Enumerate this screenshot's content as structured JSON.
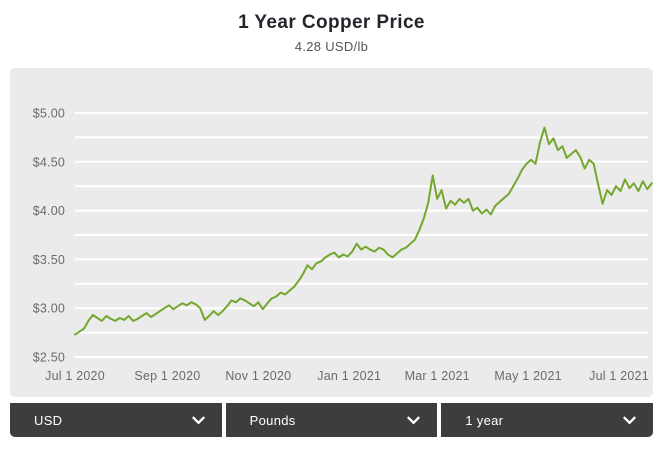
{
  "header": {
    "title": "1 Year Copper Price",
    "subtitle": "4.28 USD/lb"
  },
  "chart_data": {
    "type": "line",
    "title": "1 Year Copper Price",
    "subtitle_latest_price": "4.28 USD/lb",
    "unit": "USD/lb",
    "line_color": "#74a72e",
    "plot_bg": "#ebebeb",
    "grid_color": "#ffffff",
    "grid_on": true,
    "legend": "none",
    "ylim": [
      2.5,
      5.0
    ],
    "y_grid_step": 0.25,
    "y_ticks": [
      {
        "label": "$2.50",
        "value": 2.5
      },
      {
        "label": "$3.00",
        "value": 3.0
      },
      {
        "label": "$3.50",
        "value": 3.5
      },
      {
        "label": "$4.00",
        "value": 4.0
      },
      {
        "label": "$4.50",
        "value": 4.5
      },
      {
        "label": "$5.00",
        "value": 5.0
      }
    ],
    "x_ticks": [
      {
        "label": "Jul 1 2020",
        "day": 0
      },
      {
        "label": "Sep 1 2020",
        "day": 62
      },
      {
        "label": "Nov 1 2020",
        "day": 123
      },
      {
        "label": "Jan 1 2021",
        "day": 184
      },
      {
        "label": "Mar 1 2021",
        "day": 243
      },
      {
        "label": "May 1 2021",
        "day": 304
      },
      {
        "label": "Jul 1 2021",
        "day": 365
      }
    ],
    "x_axis_days_per_year": 365,
    "series": [
      {
        "name": "Copper price (USD/lb)",
        "sample_interval_days": 3,
        "start_label": "Jul 1 2020",
        "values": [
          2.73,
          2.76,
          2.79,
          2.87,
          2.93,
          2.9,
          2.87,
          2.92,
          2.89,
          2.87,
          2.9,
          2.88,
          2.92,
          2.87,
          2.89,
          2.92,
          2.95,
          2.91,
          2.94,
          2.97,
          3.0,
          3.03,
          2.99,
          3.02,
          3.05,
          3.03,
          3.06,
          3.04,
          3.0,
          2.88,
          2.92,
          2.97,
          2.93,
          2.97,
          3.02,
          3.08,
          3.06,
          3.1,
          3.08,
          3.05,
          3.02,
          3.06,
          2.99,
          3.05,
          3.1,
          3.12,
          3.16,
          3.14,
          3.18,
          3.22,
          3.28,
          3.35,
          3.44,
          3.4,
          3.46,
          3.48,
          3.52,
          3.55,
          3.57,
          3.52,
          3.55,
          3.53,
          3.58,
          3.66,
          3.6,
          3.63,
          3.6,
          3.58,
          3.62,
          3.6,
          3.55,
          3.52,
          3.56,
          3.6,
          3.62,
          3.66,
          3.7,
          3.8,
          3.92,
          4.08,
          4.36,
          4.12,
          4.21,
          4.02,
          4.1,
          4.06,
          4.12,
          4.08,
          4.12,
          4.0,
          4.03,
          3.97,
          4.01,
          3.96,
          4.05,
          4.09,
          4.13,
          4.17,
          4.25,
          4.33,
          4.42,
          4.48,
          4.52,
          4.48,
          4.7,
          4.85,
          4.68,
          4.74,
          4.62,
          4.66,
          4.54,
          4.58,
          4.62,
          4.55,
          4.43,
          4.52,
          4.48,
          4.27,
          4.07,
          4.21,
          4.16,
          4.25,
          4.2,
          4.32,
          4.23,
          4.28,
          4.2,
          4.3,
          4.22,
          4.28
        ]
      }
    ]
  },
  "controls": {
    "currency": {
      "value": "USD",
      "icon": "chevron-down-icon"
    },
    "weight": {
      "value": "Pounds",
      "icon": "chevron-down-icon"
    },
    "range": {
      "value": "1 year",
      "icon": "chevron-down-icon"
    }
  }
}
